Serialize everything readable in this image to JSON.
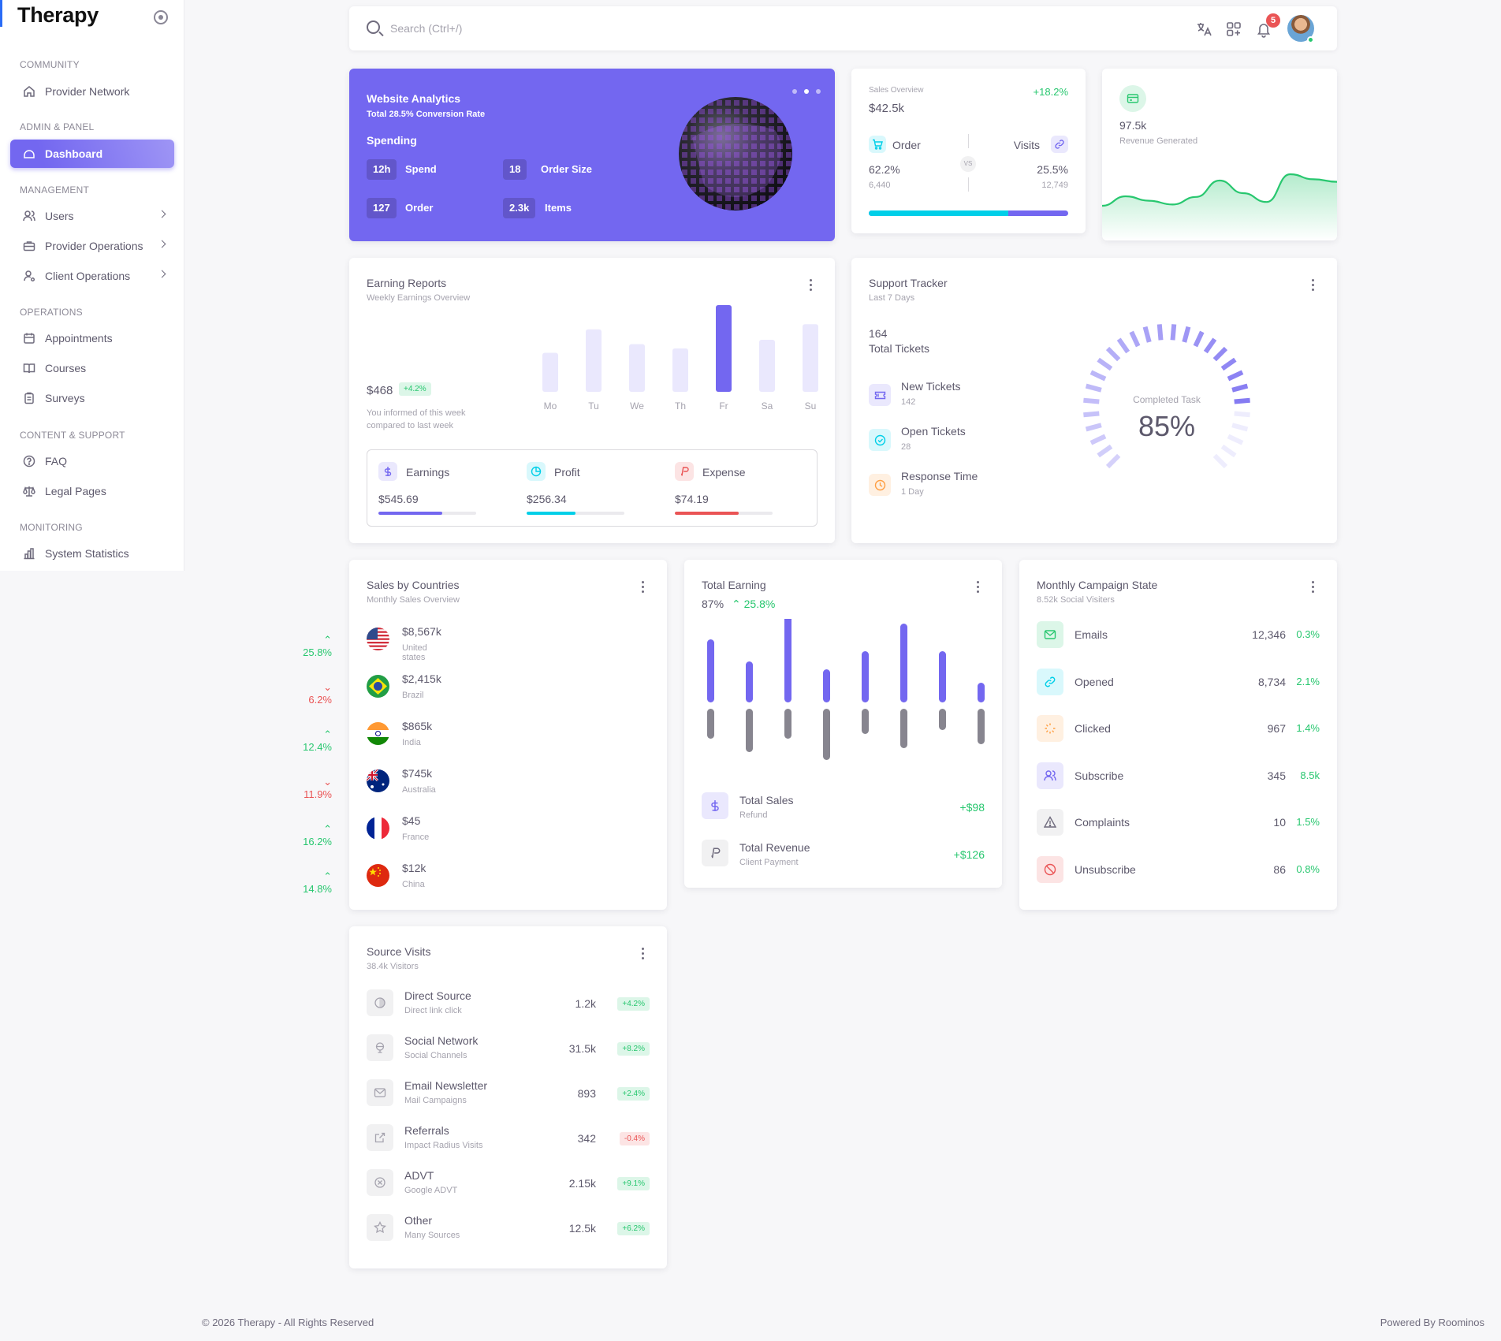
{
  "sidebar": {
    "brand": "Therapy",
    "sections": {
      "community": "COMMUNITY",
      "admin": "ADMIN & PANEL",
      "management": "MANAGEMENT",
      "operations": "OPERATIONS",
      "content": "CONTENT & SUPPORT",
      "monitoring": "MONITORING"
    },
    "items": {
      "provider_network": "Provider Network",
      "dashboard": "Dashboard",
      "users": "Users",
      "provider_operations": "Provider Operations",
      "client_operations": "Client Operations",
      "appointments": "Appointments",
      "courses": "Courses",
      "surveys": "Surveys",
      "faq": "FAQ",
      "legal_pages": "Legal Pages",
      "system_statistics": "System Statistics"
    },
    "accent": "#7367f0"
  },
  "topbar": {
    "search_placeholder": "Search (Ctrl+/)",
    "notification_count": "5"
  },
  "website_analytics": {
    "title": "Website Analytics",
    "subtitle": "Total 28.5% Conversion Rate",
    "section": "Spending",
    "stats": [
      {
        "value": "12h",
        "label": "Spend"
      },
      {
        "value": "18",
        "label": "Order Size"
      },
      {
        "value": "127",
        "label": "Order"
      },
      {
        "value": "2.3k",
        "label": "Items"
      }
    ]
  },
  "sales_overview": {
    "label": "Sales Overview",
    "change": "+18.2%",
    "value": "$42.5k",
    "order_label": "Order",
    "order_pct": "62.2%",
    "order_count": "6,440",
    "vs": "VS",
    "visits_label": "Visits",
    "visits_pct": "25.5%",
    "visits_count": "12,749",
    "order_fraction": 0.7
  },
  "revenue": {
    "value": "97.5k",
    "label": "Revenue Generated",
    "series": [
      30,
      45,
      38,
      32,
      44,
      70,
      50,
      36,
      80,
      72,
      68
    ]
  },
  "earning_reports": {
    "title": "Earning Reports",
    "subtitle": "Weekly Earnings Overview",
    "value": "$468",
    "change": "+4.2%",
    "note_line1": "You informed of this week",
    "note_line2": "compared to last week",
    "days": [
      "Mo",
      "Tu",
      "We",
      "Th",
      "Fr",
      "Sa",
      "Su"
    ],
    "bars": [
      45,
      72,
      55,
      50,
      100,
      60,
      78
    ],
    "highlight_index": 4,
    "metrics": [
      {
        "label": "Earnings",
        "value": "$545.69",
        "progress": 0.65,
        "color": "#7367f0"
      },
      {
        "label": "Profit",
        "value": "$256.34",
        "progress": 0.5,
        "color": "#00cfe8"
      },
      {
        "label": "Expense",
        "value": "$74.19",
        "progress": 0.65,
        "color": "#ea5455"
      }
    ]
  },
  "support_tracker": {
    "title": "Support Tracker",
    "subtitle": "Last 7 Days",
    "total": "164",
    "total_label": "Total Tickets",
    "items": [
      {
        "label": "New Tickets",
        "value": "142",
        "color": "#7367f0",
        "bg": "#eae8fd"
      },
      {
        "label": "Open Tickets",
        "value": "28",
        "color": "#00cfe8",
        "bg": "#d9f8fc"
      },
      {
        "label": "Response Time",
        "value": "1 Day",
        "color": "#ff9f43",
        "bg": "#fff0e1"
      }
    ],
    "gauge_label": "Completed Task",
    "gauge_value": "85%",
    "gauge_fraction": 0.85
  },
  "sales_by_countries": {
    "title": "Sales by Countries",
    "subtitle": "Monthly Sales Overview",
    "rows": [
      {
        "amount": "$8,567k",
        "country": "United states",
        "change": "25.8%",
        "up": true,
        "flag": "us"
      },
      {
        "amount": "$2,415k",
        "country": "Brazil",
        "change": "6.2%",
        "up": false,
        "flag": "br"
      },
      {
        "amount": "$865k",
        "country": "India",
        "change": "12.4%",
        "up": true,
        "flag": "in"
      },
      {
        "amount": "$745k",
        "country": "Australia",
        "change": "11.9%",
        "up": false,
        "flag": "au"
      },
      {
        "amount": "$45",
        "country": "France",
        "change": "16.2%",
        "up": true,
        "flag": "fr"
      },
      {
        "amount": "$12k",
        "country": "China",
        "change": "14.8%",
        "up": true,
        "flag": "cn"
      }
    ]
  },
  "total_earning": {
    "title": "Total Earning",
    "percent": "87%",
    "change": "25.8%",
    "up_bars": [
      80,
      52,
      110,
      42,
      65,
      100,
      65,
      25
    ],
    "down_bars": [
      38,
      55,
      38,
      65,
      32,
      50,
      27,
      45
    ],
    "rows": [
      {
        "label": "Total Sales",
        "sub": "Refund",
        "value": "+$98",
        "color": "#7367f0",
        "bg": "#eae8fd"
      },
      {
        "label": "Total Revenue",
        "sub": "Client Payment",
        "value": "+$126",
        "color": "#6f6b7d",
        "bg": "#f1f1f2"
      }
    ]
  },
  "campaign": {
    "title": "Monthly Campaign State",
    "subtitle": "8.52k Social Visiters",
    "rows": [
      {
        "label": "Emails",
        "value": "12,346",
        "pct": "0.3%",
        "color": "#28c76f",
        "bg": "#dcf6e8",
        "icon": "mail-icon"
      },
      {
        "label": "Opened",
        "value": "8,734",
        "pct": "2.1%",
        "color": "#00cfe8",
        "bg": "#d9f8fc",
        "icon": "link-icon"
      },
      {
        "label": "Clicked",
        "value": "967",
        "pct": "1.4%",
        "color": "#ff9f43",
        "bg": "#fff0e1",
        "icon": "click-icon"
      },
      {
        "label": "Subscribe",
        "value": "345",
        "pct": "8.5k",
        "color": "#7367f0",
        "bg": "#eae8fd",
        "icon": "users-icon"
      },
      {
        "label": "Complaints",
        "value": "10",
        "pct": "1.5%",
        "color": "#6f6b7d",
        "bg": "#f1f1f2",
        "icon": "alert-icon"
      },
      {
        "label": "Unsubscribe",
        "value": "86",
        "pct": "0.8%",
        "color": "#ea5455",
        "bg": "#fce4e4",
        "icon": "ban-icon"
      }
    ]
  },
  "source_visits": {
    "title": "Source Visits",
    "subtitle": "38.4k Visitors",
    "rows": [
      {
        "label": "Direct Source",
        "sub": "Direct link click",
        "value": "1.2k",
        "change": "+4.2%",
        "up": true
      },
      {
        "label": "Social Network",
        "sub": "Social Channels",
        "value": "31.5k",
        "change": "+8.2%",
        "up": true
      },
      {
        "label": "Email Newsletter",
        "sub": "Mail Campaigns",
        "value": "893",
        "change": "+2.4%",
        "up": true
      },
      {
        "label": "Referrals",
        "sub": "Impact Radius Visits",
        "value": "342",
        "change": "-0.4%",
        "up": false
      },
      {
        "label": "ADVT",
        "sub": "Google ADVT",
        "value": "2.15k",
        "change": "+9.1%",
        "up": true
      },
      {
        "label": "Other",
        "sub": "Many Sources",
        "value": "12.5k",
        "change": "+6.2%",
        "up": true
      }
    ]
  },
  "footer": {
    "copyright": "© 2026 Therapy - All Rights Reserved",
    "powered": "Powered By Roominos"
  }
}
